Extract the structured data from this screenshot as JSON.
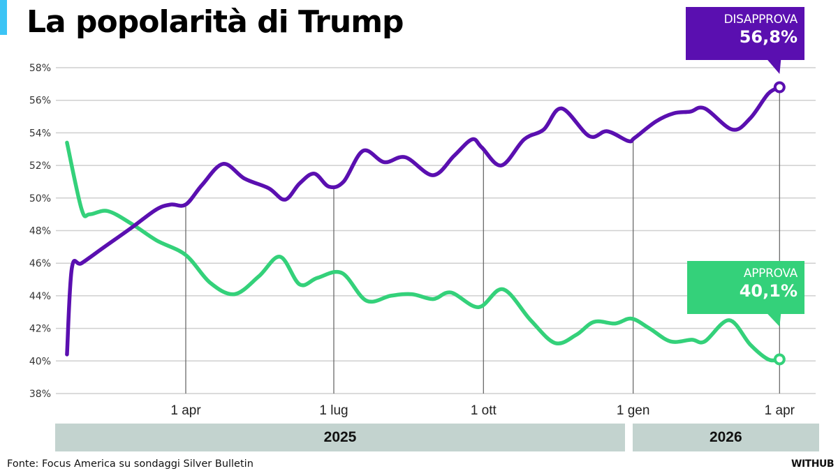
{
  "header": {
    "title": "La popolarità di Trump",
    "accent_color": "#3cc4f5"
  },
  "callouts": {
    "disapprove": {
      "label": "DISAPPROVA",
      "value": "56,8%",
      "color": "#5a0fb0"
    },
    "approve": {
      "label": "APPROVA",
      "value": "40,1%",
      "color": "#34d17a"
    }
  },
  "footer": {
    "source": "Fonte:  Focus America su sondaggi Silver Bulletin",
    "brand": "WITHUB"
  },
  "chart_data": {
    "type": "line",
    "title": "La popolarità di Trump",
    "xlabel": "",
    "ylabel": "",
    "x_unit": "days since 1 Jan 2025",
    "ylim": [
      38,
      58
    ],
    "xlim": [
      18,
      455
    ],
    "grid": true,
    "y_ticks": [
      {
        "value": 58,
        "label": "58%"
      },
      {
        "value": 56,
        "label": "56%"
      },
      {
        "value": 54,
        "label": "54%"
      },
      {
        "value": 52,
        "label": "52%"
      },
      {
        "value": 50,
        "label": "50%"
      },
      {
        "value": 48,
        "label": "48%"
      },
      {
        "value": 46,
        "label": "46%"
      },
      {
        "value": 44,
        "label": "44%"
      },
      {
        "value": 42,
        "label": "42%"
      },
      {
        "value": 40,
        "label": "40%"
      },
      {
        "value": 38,
        "label": "38%"
      }
    ],
    "x_ticks": [
      {
        "value": 90,
        "label": "1 apr"
      },
      {
        "value": 181,
        "label": "1 lug"
      },
      {
        "value": 273,
        "label": "1 ott"
      },
      {
        "value": 365,
        "label": "1 gen"
      },
      {
        "value": 455,
        "label": "1 apr"
      }
    ],
    "year_bands": [
      {
        "label": "2025",
        "from": 0,
        "to": 364
      },
      {
        "label": "2026",
        "from": 365,
        "to": 480
      }
    ],
    "series": [
      {
        "name": "Disapprova",
        "color": "#5a0fb0",
        "points": [
          [
            17,
            40.4
          ],
          [
            20,
            45.7
          ],
          [
            26,
            46.0
          ],
          [
            40,
            47.0
          ],
          [
            57,
            48.2
          ],
          [
            72,
            49.3
          ],
          [
            81,
            49.6
          ],
          [
            90,
            49.6
          ],
          [
            100,
            50.8
          ],
          [
            113,
            52.1
          ],
          [
            126,
            51.2
          ],
          [
            141,
            50.6
          ],
          [
            151,
            49.9
          ],
          [
            160,
            50.9
          ],
          [
            169,
            51.5
          ],
          [
            178,
            50.7
          ],
          [
            187,
            51.0
          ],
          [
            199,
            52.9
          ],
          [
            212,
            52.2
          ],
          [
            225,
            52.5
          ],
          [
            242,
            51.4
          ],
          [
            255,
            52.6
          ],
          [
            266,
            53.6
          ],
          [
            272,
            53.1
          ],
          [
            284,
            52.0
          ],
          [
            298,
            53.6
          ],
          [
            310,
            54.2
          ],
          [
            321,
            55.5
          ],
          [
            338,
            53.8
          ],
          [
            349,
            54.1
          ],
          [
            362,
            53.5
          ],
          [
            366,
            53.7
          ],
          [
            379,
            54.7
          ],
          [
            390,
            55.2
          ],
          [
            400,
            55.3
          ],
          [
            409,
            55.5
          ],
          [
            426,
            54.2
          ],
          [
            437,
            54.9
          ],
          [
            448,
            56.4
          ],
          [
            455,
            56.8
          ]
        ]
      },
      {
        "name": "Approva",
        "color": "#34d17a",
        "points": [
          [
            17,
            53.4
          ],
          [
            26,
            49.3
          ],
          [
            31,
            49.0
          ],
          [
            42,
            49.2
          ],
          [
            57,
            48.4
          ],
          [
            72,
            47.4
          ],
          [
            90,
            46.5
          ],
          [
            105,
            44.8
          ],
          [
            120,
            44.1
          ],
          [
            135,
            45.2
          ],
          [
            148,
            46.4
          ],
          [
            160,
            44.7
          ],
          [
            171,
            45.1
          ],
          [
            186,
            45.4
          ],
          [
            201,
            43.7
          ],
          [
            216,
            44.0
          ],
          [
            229,
            44.1
          ],
          [
            242,
            43.8
          ],
          [
            253,
            44.2
          ],
          [
            270,
            43.3
          ],
          [
            285,
            44.4
          ],
          [
            302,
            42.5
          ],
          [
            317,
            41.1
          ],
          [
            330,
            41.6
          ],
          [
            341,
            42.4
          ],
          [
            354,
            42.3
          ],
          [
            364,
            42.6
          ],
          [
            375,
            42.0
          ],
          [
            388,
            41.2
          ],
          [
            401,
            41.3
          ],
          [
            409,
            41.2
          ],
          [
            424,
            42.5
          ],
          [
            437,
            41.0
          ],
          [
            448,
            40.1
          ],
          [
            455,
            40.1
          ]
        ]
      }
    ],
    "annotations": [
      {
        "series": "Disapprova",
        "text": "DISAPPROVA 56,8%"
      },
      {
        "series": "Approva",
        "text": "APPROVA 40,1%"
      }
    ]
  }
}
